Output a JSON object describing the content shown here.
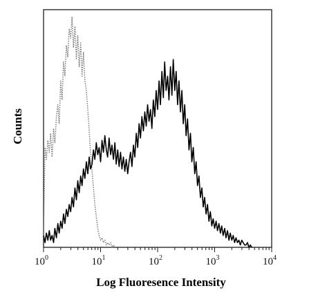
{
  "chart_data": {
    "type": "line",
    "title": "",
    "xlabel": "Log Fluoresence Intensity",
    "ylabel": "Counts",
    "x_scale": "log",
    "xlim": [
      1,
      10000
    ],
    "ylim": [
      0,
      100
    ],
    "y_ticks_labeled": false,
    "grid": false,
    "legend": "none",
    "x_ticks": [
      {
        "value": 1,
        "base": "10",
        "exp": "0"
      },
      {
        "value": 10,
        "base": "10",
        "exp": "1"
      },
      {
        "value": 100,
        "base": "10",
        "exp": "2"
      },
      {
        "value": 1000,
        "base": "10",
        "exp": "3"
      },
      {
        "value": 10000,
        "base": "10",
        "exp": "4"
      }
    ],
    "series": [
      {
        "style": "dotted",
        "color": "#7a7a7a",
        "points": [
          [
            1.0,
            4
          ],
          [
            1.06,
            42
          ],
          [
            1.12,
            37
          ],
          [
            1.19,
            45
          ],
          [
            1.26,
            40
          ],
          [
            1.33,
            48
          ],
          [
            1.41,
            38
          ],
          [
            1.5,
            50
          ],
          [
            1.58,
            44
          ],
          [
            1.68,
            55
          ],
          [
            1.78,
            60
          ],
          [
            1.88,
            52
          ],
          [
            2.0,
            70
          ],
          [
            2.11,
            62
          ],
          [
            2.24,
            78
          ],
          [
            2.37,
            72
          ],
          [
            2.51,
            85
          ],
          [
            2.66,
            80
          ],
          [
            2.82,
            92
          ],
          [
            2.99,
            88
          ],
          [
            3.16,
            97
          ],
          [
            3.35,
            84
          ],
          [
            3.55,
            93
          ],
          [
            3.76,
            79
          ],
          [
            3.98,
            89
          ],
          [
            4.22,
            76
          ],
          [
            4.47,
            86
          ],
          [
            4.73,
            72
          ],
          [
            5.01,
            82
          ],
          [
            5.31,
            70
          ],
          [
            5.62,
            66
          ],
          [
            5.96,
            58
          ],
          [
            6.31,
            49
          ],
          [
            6.68,
            40
          ],
          [
            7.08,
            32
          ],
          [
            7.5,
            25
          ],
          [
            7.94,
            18
          ],
          [
            8.41,
            13
          ],
          [
            8.91,
            8
          ],
          [
            9.44,
            5
          ],
          [
            10.0,
            3
          ],
          [
            10.6,
            4
          ],
          [
            11.2,
            2
          ],
          [
            11.9,
            3
          ],
          [
            12.6,
            1
          ],
          [
            13.3,
            2
          ],
          [
            14.1,
            1
          ],
          [
            15.0,
            2
          ],
          [
            15.8,
            0
          ],
          [
            16.8,
            1
          ],
          [
            17.8,
            0
          ]
        ]
      },
      {
        "style": "solid",
        "color": "#000000",
        "points": [
          [
            1.0,
            5
          ],
          [
            1.06,
            2
          ],
          [
            1.12,
            6
          ],
          [
            1.19,
            3
          ],
          [
            1.26,
            7
          ],
          [
            1.33,
            3
          ],
          [
            1.41,
            5
          ],
          [
            1.5,
            2
          ],
          [
            1.58,
            8
          ],
          [
            1.68,
            4
          ],
          [
            1.78,
            10
          ],
          [
            1.88,
            6
          ],
          [
            2.0,
            11
          ],
          [
            2.11,
            8
          ],
          [
            2.24,
            14
          ],
          [
            2.37,
            10
          ],
          [
            2.51,
            16
          ],
          [
            2.66,
            13
          ],
          [
            2.82,
            18
          ],
          [
            2.99,
            15
          ],
          [
            3.16,
            21
          ],
          [
            3.35,
            17
          ],
          [
            3.55,
            25
          ],
          [
            3.76,
            20
          ],
          [
            3.98,
            28
          ],
          [
            4.22,
            23
          ],
          [
            4.47,
            30
          ],
          [
            4.73,
            26
          ],
          [
            5.01,
            33
          ],
          [
            5.31,
            29
          ],
          [
            5.62,
            36
          ],
          [
            5.96,
            31
          ],
          [
            6.31,
            38
          ],
          [
            6.68,
            33
          ],
          [
            7.08,
            35
          ],
          [
            7.5,
            41
          ],
          [
            7.94,
            37
          ],
          [
            8.41,
            44
          ],
          [
            8.91,
            39
          ],
          [
            9.44,
            42
          ],
          [
            10.0,
            36
          ],
          [
            10.6,
            45
          ],
          [
            11.2,
            40
          ],
          [
            11.9,
            47
          ],
          [
            12.6,
            41
          ],
          [
            13.3,
            38
          ],
          [
            14.1,
            46
          ],
          [
            15.0,
            39
          ],
          [
            15.8,
            43
          ],
          [
            16.8,
            37
          ],
          [
            17.8,
            44
          ],
          [
            18.8,
            35
          ],
          [
            20.0,
            41
          ],
          [
            21.1,
            34
          ],
          [
            22.4,
            40
          ],
          [
            23.7,
            33
          ],
          [
            25.1,
            38
          ],
          [
            26.6,
            32
          ],
          [
            28.2,
            37
          ],
          [
            29.9,
            31
          ],
          [
            31.6,
            36
          ],
          [
            33.5,
            40
          ],
          [
            35.5,
            34
          ],
          [
            37.6,
            43
          ],
          [
            39.8,
            38
          ],
          [
            42.2,
            48
          ],
          [
            44.7,
            42
          ],
          [
            47.3,
            52
          ],
          [
            50.1,
            46
          ],
          [
            53.1,
            55
          ],
          [
            56.2,
            49
          ],
          [
            59.6,
            57
          ],
          [
            63.1,
            51
          ],
          [
            66.8,
            60
          ],
          [
            70.8,
            53
          ],
          [
            75.0,
            58
          ],
          [
            79.4,
            50
          ],
          [
            84.1,
            62
          ],
          [
            89.1,
            55
          ],
          [
            94.4,
            66
          ],
          [
            100,
            58
          ],
          [
            106,
            70
          ],
          [
            112,
            60
          ],
          [
            119,
            74
          ],
          [
            126,
            63
          ],
          [
            133,
            78
          ],
          [
            141,
            66
          ],
          [
            150,
            72
          ],
          [
            158,
            62
          ],
          [
            168,
            76
          ],
          [
            178,
            64
          ],
          [
            188,
            79
          ],
          [
            200,
            66
          ],
          [
            211,
            74
          ],
          [
            224,
            60
          ],
          [
            237,
            70
          ],
          [
            251,
            57
          ],
          [
            266,
            66
          ],
          [
            282,
            52
          ],
          [
            299,
            60
          ],
          [
            316,
            47
          ],
          [
            335,
            54
          ],
          [
            355,
            41
          ],
          [
            376,
            48
          ],
          [
            398,
            36
          ],
          [
            422,
            42
          ],
          [
            447,
            31
          ],
          [
            473,
            36
          ],
          [
            501,
            26
          ],
          [
            531,
            30
          ],
          [
            562,
            21
          ],
          [
            596,
            25
          ],
          [
            631,
            17
          ],
          [
            668,
            21
          ],
          [
            708,
            14
          ],
          [
            750,
            18
          ],
          [
            794,
            11
          ],
          [
            841,
            15
          ],
          [
            891,
            9
          ],
          [
            944,
            12
          ],
          [
            1000,
            8
          ],
          [
            1060,
            11
          ],
          [
            1120,
            7
          ],
          [
            1190,
            10
          ],
          [
            1260,
            6
          ],
          [
            1330,
            9
          ],
          [
            1410,
            5
          ],
          [
            1500,
            8
          ],
          [
            1580,
            4
          ],
          [
            1680,
            7
          ],
          [
            1780,
            3
          ],
          [
            1880,
            6
          ],
          [
            2000,
            3
          ],
          [
            2110,
            5
          ],
          [
            2240,
            2
          ],
          [
            2370,
            4
          ],
          [
            2510,
            2
          ],
          [
            2660,
            3
          ],
          [
            2820,
            1
          ],
          [
            2990,
            3
          ],
          [
            3160,
            2
          ],
          [
            3350,
            1
          ],
          [
            3550,
            1
          ],
          [
            3760,
            2
          ],
          [
            3980,
            0
          ],
          [
            4220,
            1
          ],
          [
            4470,
            0
          ]
        ]
      }
    ]
  }
}
